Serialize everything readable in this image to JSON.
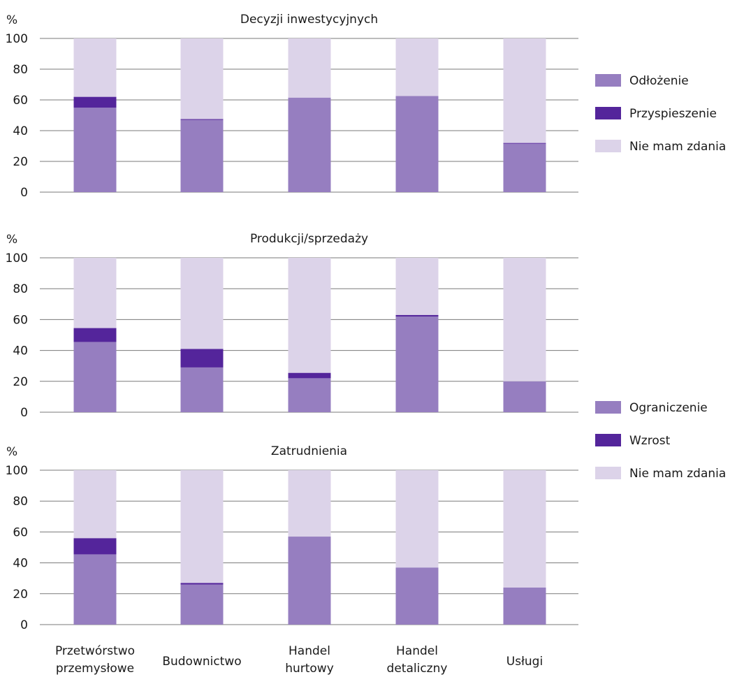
{
  "chart_data": {
    "type": "bar",
    "stacked": true,
    "categories": [
      [
        "Przetwórstwo",
        "przemysłowe"
      ],
      [
        "Budownictwo"
      ],
      [
        "Handel",
        "hurtowy"
      ],
      [
        "Handel",
        "detaliczny"
      ],
      [
        "Usługi"
      ]
    ],
    "colors": {
      "negative": "#967ec0",
      "positive": "#54259b",
      "neutral": "#dcd3e9"
    },
    "ylim": [
      0,
      100
    ],
    "yticks": [
      0,
      20,
      40,
      60,
      80,
      100
    ],
    "ylabel": "%",
    "grid": true,
    "panels": [
      {
        "title": "Decyzji inwestycyjnych",
        "legend": [
          "Odłożenie",
          "Przyspieszenie",
          "Nie mam zdania"
        ],
        "series": [
          {
            "name": "Odłożenie",
            "values": [
              55,
              47,
              61.5,
              62.5,
              31.5
            ]
          },
          {
            "name": "Przyspieszenie",
            "values": [
              7,
              0.5,
              0,
              0,
              0.5
            ]
          },
          {
            "name": "Nie mam zdania",
            "values": [
              38,
              52.5,
              38.5,
              37.5,
              68
            ]
          }
        ]
      },
      {
        "title": "Produkcji/sprzedaży",
        "legend": [
          "Ograniczenie",
          "Wzrost",
          "Nie mam zdania"
        ],
        "series": [
          {
            "name": "Ograniczenie",
            "values": [
              45.5,
              29,
              22,
              62,
              20
            ]
          },
          {
            "name": "Wzrost",
            "values": [
              9,
              12,
              3.5,
              1,
              0
            ]
          },
          {
            "name": "Nie mam zdania",
            "values": [
              45.5,
              59,
              74.5,
              37,
              80
            ]
          }
        ]
      },
      {
        "title": "Zatrudnienia",
        "series": [
          {
            "name": "Ograniczenie",
            "values": [
              45.5,
              26,
              57,
              37,
              24
            ]
          },
          {
            "name": "Wzrost",
            "values": [
              10.5,
              1,
              0,
              0,
              0
            ]
          },
          {
            "name": "Nie mam zdania",
            "values": [
              44,
              73,
              43,
              63,
              76
            ]
          }
        ]
      }
    ]
  }
}
